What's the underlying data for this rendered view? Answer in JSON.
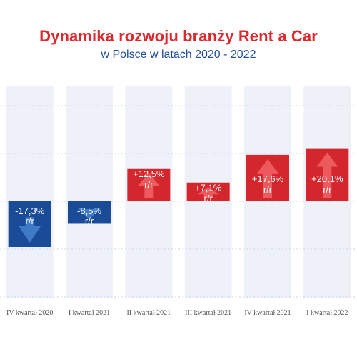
{
  "header": {
    "title": "Dynamika rozwoju branży Rent a Car",
    "subtitle": "w Polsce w latach 2020 - 2022"
  },
  "chart_data": {
    "type": "bar",
    "categories": [
      "IV kwartał 2020",
      "I kwartał 2021",
      "II kwartał 2021",
      "III kwartał 2021",
      "IV kwartał 2021",
      "I kwartał 2022"
    ],
    "values": [
      -17.3,
      -8.5,
      12.5,
      7.1,
      17.6,
      20.1
    ],
    "value_labels": [
      "-17,3%",
      "-8,5%",
      "+12,5%",
      "+7,1%",
      "+17,6%",
      "+20,1%"
    ],
    "unit_label": "r/r",
    "title": "Dynamika rozwoju branży Rent a Car",
    "subtitle": "w Polsce w latach 2020 - 2022",
    "xlabel": "",
    "ylabel": "",
    "ylim": [
      -36,
      36
    ],
    "grid": true,
    "legend": "none",
    "colors": {
      "negative": "#1a4b96",
      "negative_arrow": "#3f7ac7",
      "positive": "#d4262d",
      "positive_arrow": "#ec5a5e",
      "column_band": "#eef1f7",
      "grid": "#c9d4e6"
    }
  }
}
